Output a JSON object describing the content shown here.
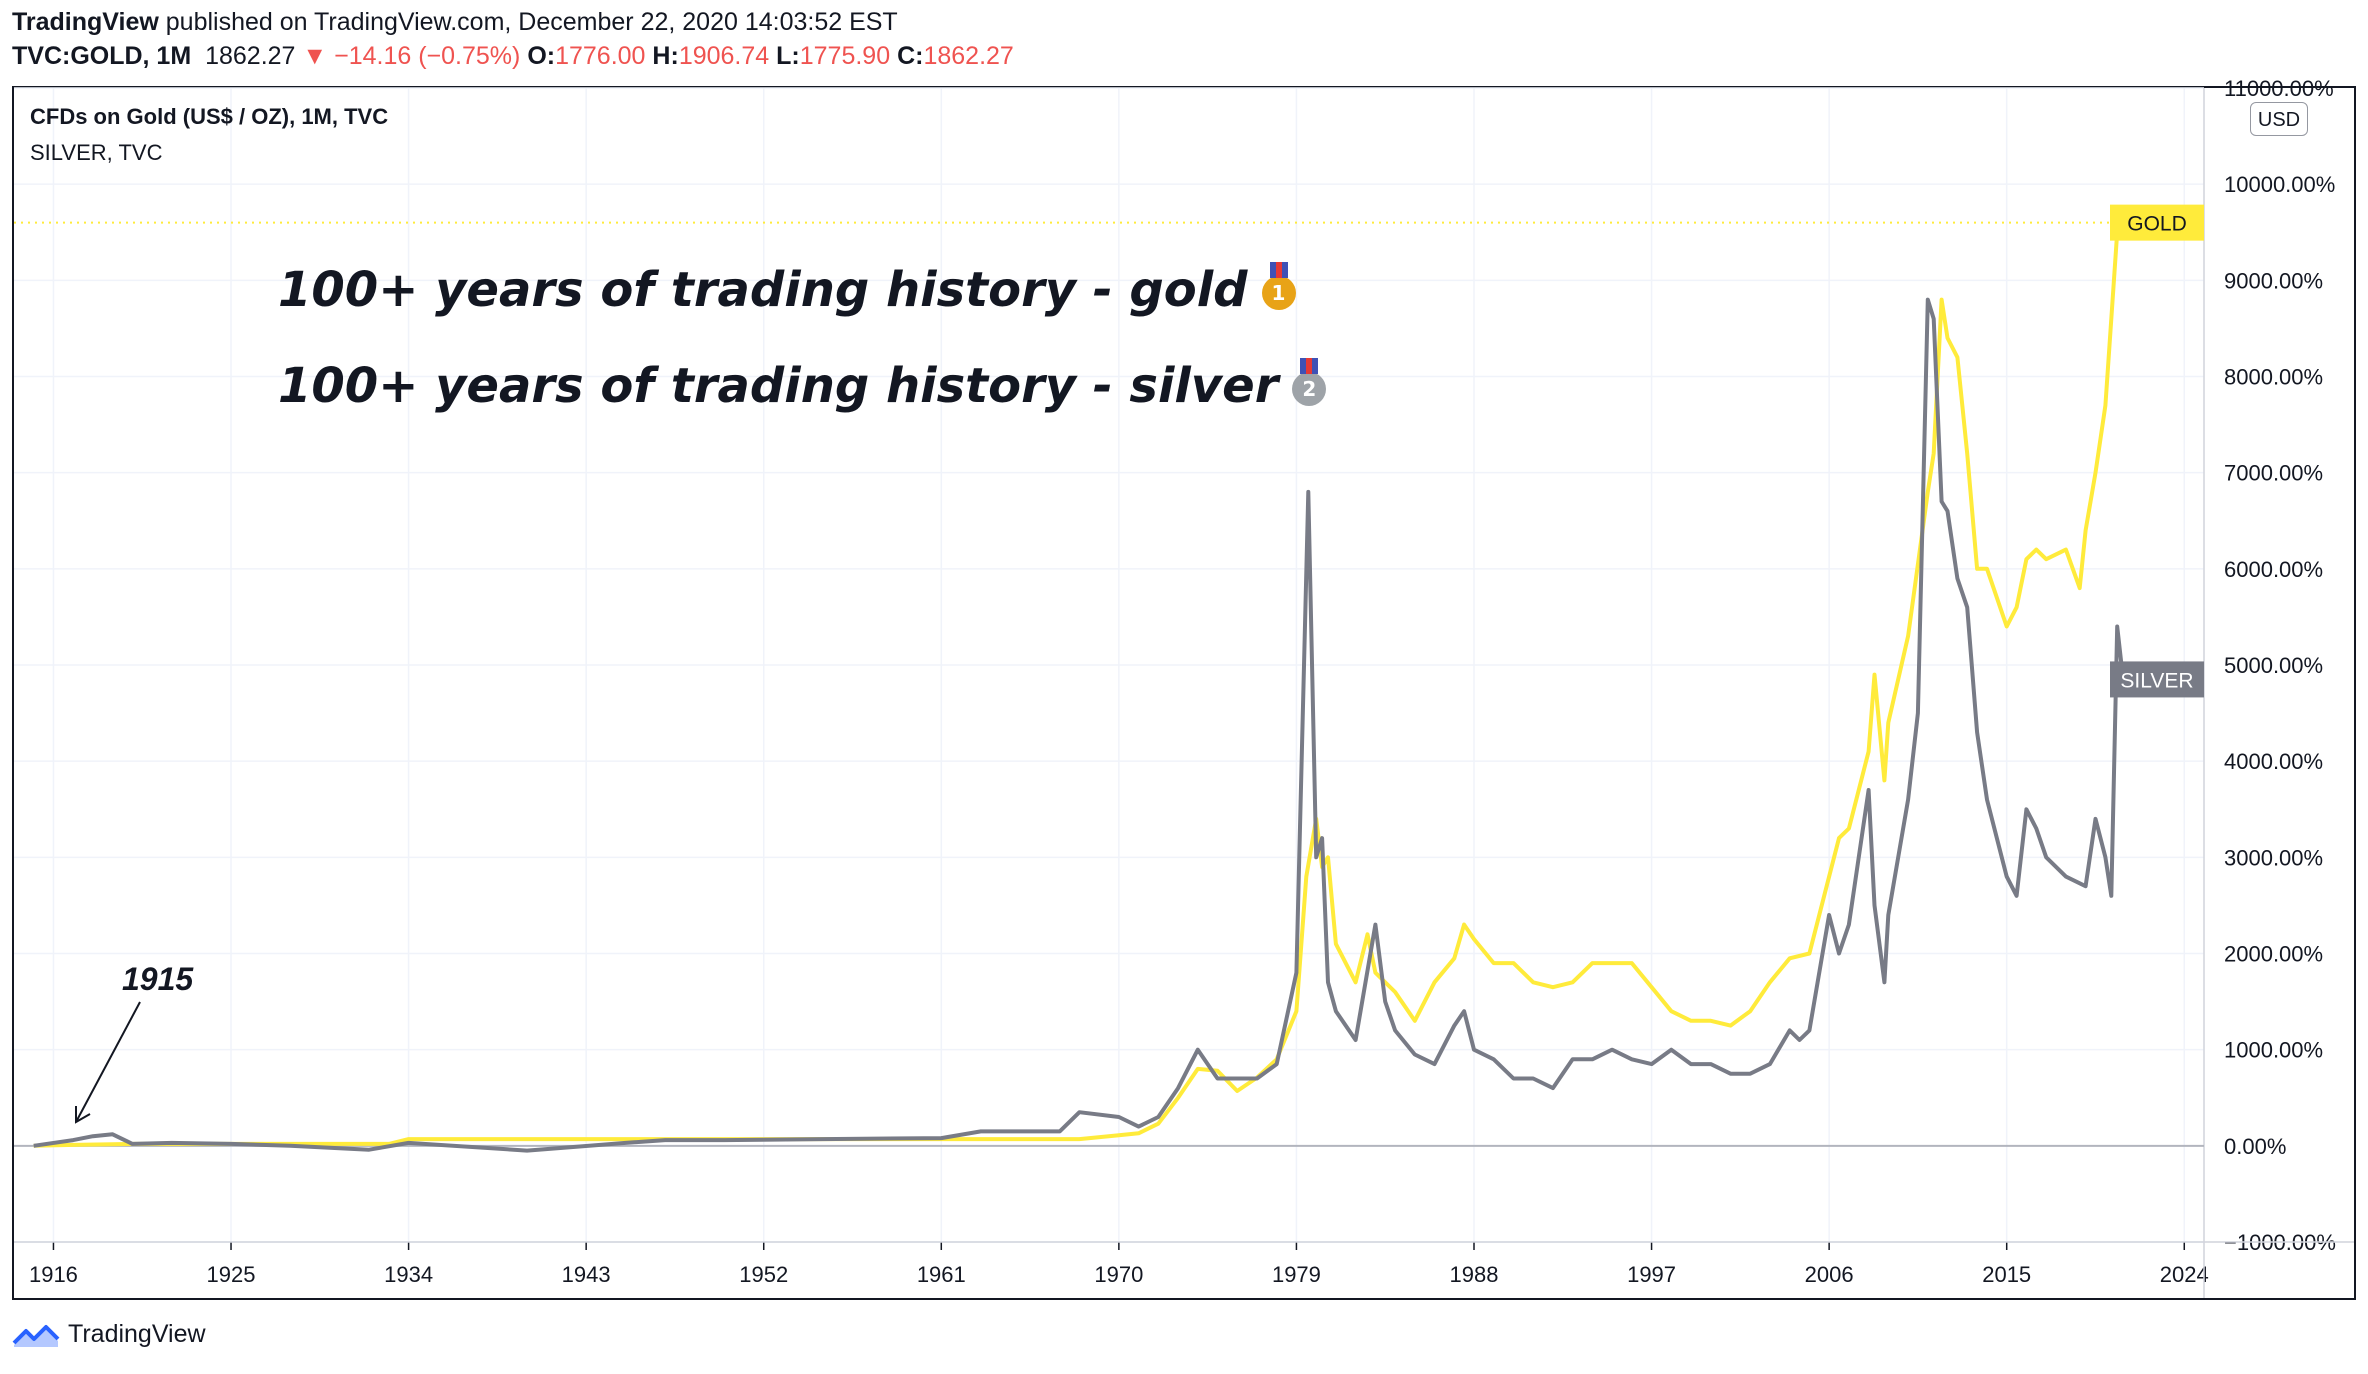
{
  "header": {
    "publisher": "TradingView",
    "published_text": " published on TradingView.com, December 22, 2020 14:03:52 EST",
    "symbol": "TVC:GOLD, 1M",
    "last": "1862.27",
    "change": "−14.16 (−0.75%)",
    "o_label": "O:",
    "o_value": "1776.00",
    "h_label": "H:",
    "h_value": "1906.74",
    "l_label": "L:",
    "l_value": "1775.90",
    "c_label": "C:",
    "c_value": "1862.27"
  },
  "legend": {
    "main_series": "CFDs on Gold (US$ / OZ), 1M, TVC",
    "compare_series": "SILVER, TVC"
  },
  "annotations": {
    "gold_line": "100+ years of trading history - gold",
    "silver_line": "100+ years of trading history - silver",
    "start_label": "1915"
  },
  "currency_button": "USD",
  "footer": {
    "brand": "TradingView"
  },
  "colors": {
    "gold": "#ffeb3b",
    "gold_label_bg": "#ffeb3b",
    "silver": "#787b86",
    "silver_label_bg": "#787b86",
    "grid": "#f0f3fa",
    "zero_line": "#b2b5be",
    "change_red": "#ef5350",
    "brand_blue": "#2962ff"
  },
  "chart_data": {
    "type": "line",
    "title": "CFDs on Gold (US$ / OZ), 1M, TVC",
    "xlabel": "",
    "ylabel": "",
    "y_unit": "%",
    "xlim": [
      1914,
      2025
    ],
    "ylim": [
      -1000,
      11000
    ],
    "x_ticks": [
      1916,
      1925,
      1934,
      1943,
      1952,
      1961,
      1970,
      1979,
      1988,
      1997,
      2006,
      2015,
      2024
    ],
    "y_ticks": [
      -1000,
      0,
      1000,
      2000,
      3000,
      4000,
      5000,
      6000,
      7000,
      8000,
      9000,
      10000,
      11000
    ],
    "y_tick_labels": [
      "−1000.00%",
      "0.00%",
      "1000.00%",
      "2000.00%",
      "3000.00%",
      "4000.00%",
      "5000.00%",
      "6000.00%",
      "7000.00%",
      "8000.00%",
      "9000.00%",
      "10000.00%",
      "11000.00%"
    ],
    "grid": true,
    "price_label_y": 9600,
    "series": [
      {
        "name": "GOLD",
        "last_value": 9600,
        "x": [
          1915,
          1917,
          1920,
          1925,
          1930,
          1933,
          1934,
          1940,
          1945,
          1950,
          1955,
          1960,
          1965,
          1968,
          1970,
          1971,
          1972,
          1973,
          1974,
          1975,
          1976,
          1977,
          1978,
          1979,
          1979.5,
          1980,
          1980.3,
          1980.6,
          1981,
          1982,
          1982.6,
          1983,
          1984,
          1985,
          1986,
          1987,
          1987.5,
          1988,
          1989,
          1990,
          1991,
          1992,
          1993,
          1994,
          1995,
          1996,
          1997,
          1998,
          1999,
          2000,
          2001,
          2002,
          2003,
          2004,
          2005,
          2006,
          2006.5,
          2007,
          2008,
          2008.3,
          2008.8,
          2009,
          2010,
          2011,
          2011.3,
          2011.7,
          2012,
          2012.5,
          2013,
          2013.5,
          2014,
          2015,
          2015.5,
          2016,
          2016.5,
          2017,
          2018,
          2018.7,
          2019,
          2019.5,
          2020,
          2020.6,
          2020.9
        ],
        "y": [
          0,
          10,
          20,
          20,
          20,
          20,
          70,
          70,
          70,
          70,
          70,
          70,
          70,
          70,
          110,
          130,
          230,
          500,
          800,
          780,
          570,
          710,
          900,
          1400,
          2800,
          3400,
          2900,
          3000,
          2100,
          1700,
          2200,
          1800,
          1600,
          1300,
          1700,
          1950,
          2300,
          2150,
          1900,
          1900,
          1700,
          1650,
          1700,
          1900,
          1900,
          1900,
          1650,
          1400,
          1300,
          1300,
          1250,
          1400,
          1700,
          1950,
          2000,
          2800,
          3200,
          3300,
          4100,
          4900,
          3800,
          4400,
          5300,
          6800,
          7200,
          8800,
          8400,
          8200,
          7200,
          6000,
          6000,
          5400,
          5600,
          6100,
          6200,
          6100,
          6200,
          5800,
          6400,
          7000,
          7700,
          9500,
          9600
        ]
      },
      {
        "name": "SILVER",
        "last_value": 4850,
        "x": [
          1915,
          1917,
          1918,
          1919,
          1920,
          1922,
          1925,
          1928,
          1931,
          1932,
          1934,
          1940,
          1945,
          1947,
          1950,
          1955,
          1961,
          1963,
          1965,
          1967,
          1968,
          1970,
          1971,
          1972,
          1973,
          1974,
          1975,
          1976,
          1977,
          1978,
          1979,
          1979.6,
          1980,
          1980.3,
          1980.6,
          1981,
          1982,
          1983,
          1983.5,
          1984,
          1985,
          1986,
          1987,
          1987.5,
          1988,
          1989,
          1990,
          1991,
          1992,
          1993,
          1994,
          1995,
          1996,
          1997,
          1998,
          1999,
          2000,
          2001,
          2002,
          2003,
          2004,
          2004.5,
          2005,
          2006,
          2006.5,
          2007,
          2008,
          2008.3,
          2008.8,
          2009,
          2010,
          2010.5,
          2011,
          2011.3,
          2011.7,
          2012,
          2012.5,
          2013,
          2013.5,
          2014,
          2015,
          2015.5,
          2016,
          2016.5,
          2017,
          2018,
          2019,
          2019.5,
          2020,
          2020.3,
          2020.6,
          2020.9
        ],
        "y": [
          0,
          60,
          100,
          120,
          20,
          30,
          20,
          0,
          -30,
          -40,
          30,
          -50,
          30,
          60,
          60,
          70,
          80,
          150,
          150,
          150,
          350,
          300,
          200,
          300,
          600,
          1000,
          700,
          700,
          700,
          850,
          1800,
          6800,
          3000,
          3200,
          1700,
          1400,
          1100,
          2300,
          1500,
          1200,
          950,
          850,
          1250,
          1400,
          1000,
          900,
          700,
          700,
          600,
          900,
          900,
          1000,
          900,
          850,
          1000,
          850,
          850,
          750,
          750,
          850,
          1200,
          1100,
          1200,
          2400,
          2000,
          2300,
          3700,
          2500,
          1700,
          2400,
          3600,
          4500,
          8800,
          8600,
          6700,
          6600,
          5900,
          5600,
          4300,
          3600,
          2800,
          2600,
          3500,
          3300,
          3000,
          2800,
          2700,
          3400,
          3000,
          2600,
          5400,
          4850
        ]
      }
    ]
  }
}
